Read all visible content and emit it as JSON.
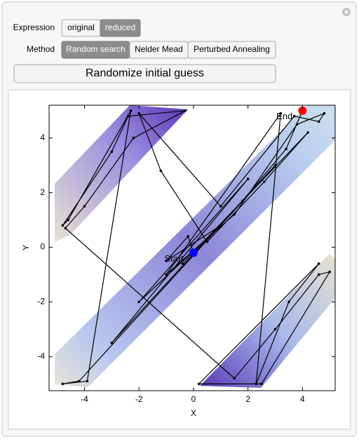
{
  "controls": {
    "expression_label": "Expression",
    "expression_options": [
      "original",
      "reduced"
    ],
    "method_label": "Method",
    "method_options": [
      "Random search",
      "Nelder Mead",
      "Perturbed Annealing"
    ],
    "button": "Randomize initial guess"
  },
  "chart_data": {
    "type": "line",
    "xlabel": "X",
    "ylabel": "Y",
    "xlim": [
      -5.3,
      5.2
    ],
    "ylim": [
      -5.25,
      5.2
    ],
    "xticks": [
      -4,
      -2,
      0,
      2,
      4
    ],
    "yticks": [
      -4,
      -2,
      0,
      2,
      4
    ],
    "series": [
      {
        "color": "#000000",
        "x": [
          0,
          -0.2,
          -1,
          1,
          -2,
          2,
          -3,
          3,
          -4.2,
          -4.8,
          -3.9,
          -2.3,
          -4.6,
          -4.8,
          -3,
          -2.4,
          -0.3,
          -2.2,
          -4,
          -4.7,
          1.5,
          3,
          4.6,
          5,
          2.5,
          0.2,
          4.6,
          3.5,
          2.3,
          3.2,
          -1,
          1.5,
          3.8,
          4.8,
          4.6,
          3.7,
          1,
          -2,
          -1.2,
          0.5,
          2.6,
          4.2,
          -0.4,
          1.8,
          3.4,
          4
        ],
        "values": [
          -0.2,
          0.4,
          -0.5,
          0.8,
          -2,
          2.5,
          -3.5,
          3,
          -4.9,
          -5,
          -4.9,
          5,
          1,
          0.8,
          3.5,
          4.8,
          5,
          4,
          1.5,
          0.7,
          -4.8,
          -3,
          -1,
          -0.9,
          -5,
          -5,
          -0.6,
          -2,
          -5,
          4.9,
          -1,
          1.2,
          4.5,
          4.9,
          4.6,
          4.8,
          1.5,
          4.9,
          2.8,
          0.2,
          2.4,
          4.2,
          -0.6,
          1.7,
          3.6,
          5
        ]
      }
    ],
    "points": [
      {
        "label": "Start",
        "x": 0,
        "y": -0.2,
        "color": "#0000ff"
      },
      {
        "label": "End",
        "x": 4,
        "y": 5,
        "color": "#ff0000"
      }
    ]
  }
}
